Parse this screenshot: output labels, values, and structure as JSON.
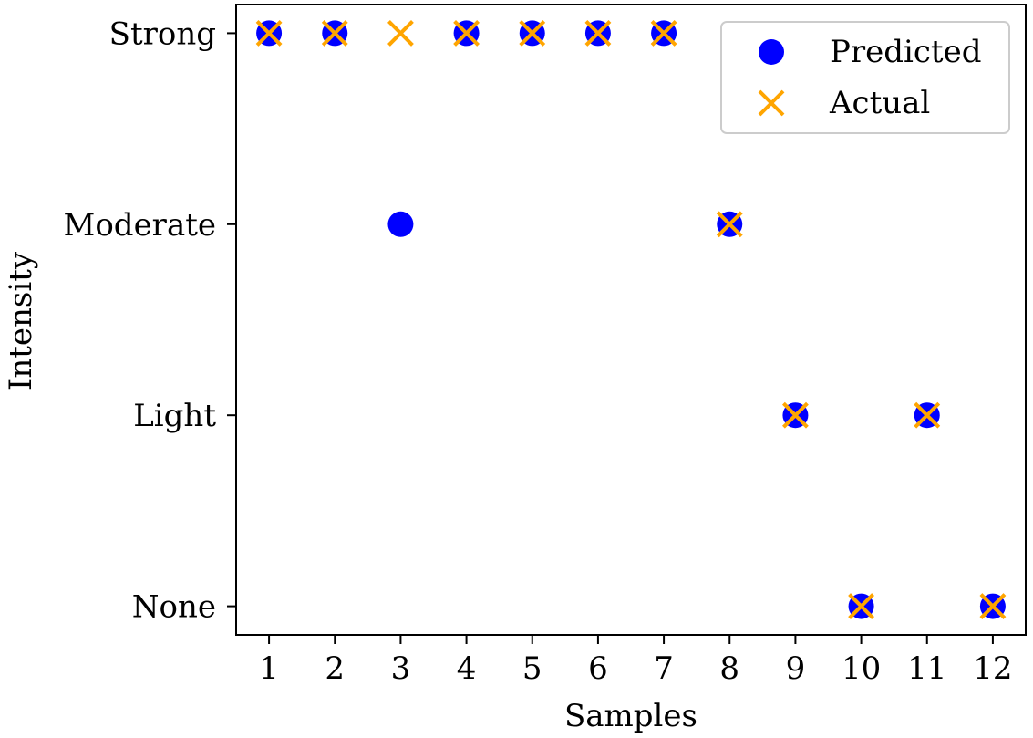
{
  "chart_data": {
    "type": "scatter",
    "title": "",
    "xlabel": "Samples",
    "ylabel": "Intensity",
    "categories_x": [
      "1",
      "2",
      "3",
      "4",
      "5",
      "6",
      "7",
      "8",
      "9",
      "10",
      "11",
      "12"
    ],
    "categories_y": [
      "None",
      "Light",
      "Moderate",
      "Strong"
    ],
    "xlim": [
      0.5,
      12.5
    ],
    "ylim": [
      -0.15,
      3.15
    ],
    "grid": false,
    "legend_position": "top-right",
    "series": [
      {
        "name": "Predicted",
        "marker": "circle",
        "color": "#0000ff",
        "x": [
          1,
          2,
          3,
          4,
          5,
          6,
          7,
          8,
          9,
          10,
          11,
          12
        ],
        "y": [
          "Strong",
          "Strong",
          "Moderate",
          "Strong",
          "Strong",
          "Strong",
          "Strong",
          "Moderate",
          "Light",
          "None",
          "Light",
          "None"
        ]
      },
      {
        "name": "Actual",
        "marker": "x",
        "color": "#ffa500",
        "x": [
          1,
          2,
          3,
          4,
          5,
          6,
          7,
          8,
          9,
          10,
          11,
          12
        ],
        "y": [
          "Strong",
          "Strong",
          "Strong",
          "Strong",
          "Strong",
          "Strong",
          "Strong",
          "Moderate",
          "Light",
          "None",
          "Light",
          "None"
        ]
      }
    ]
  }
}
